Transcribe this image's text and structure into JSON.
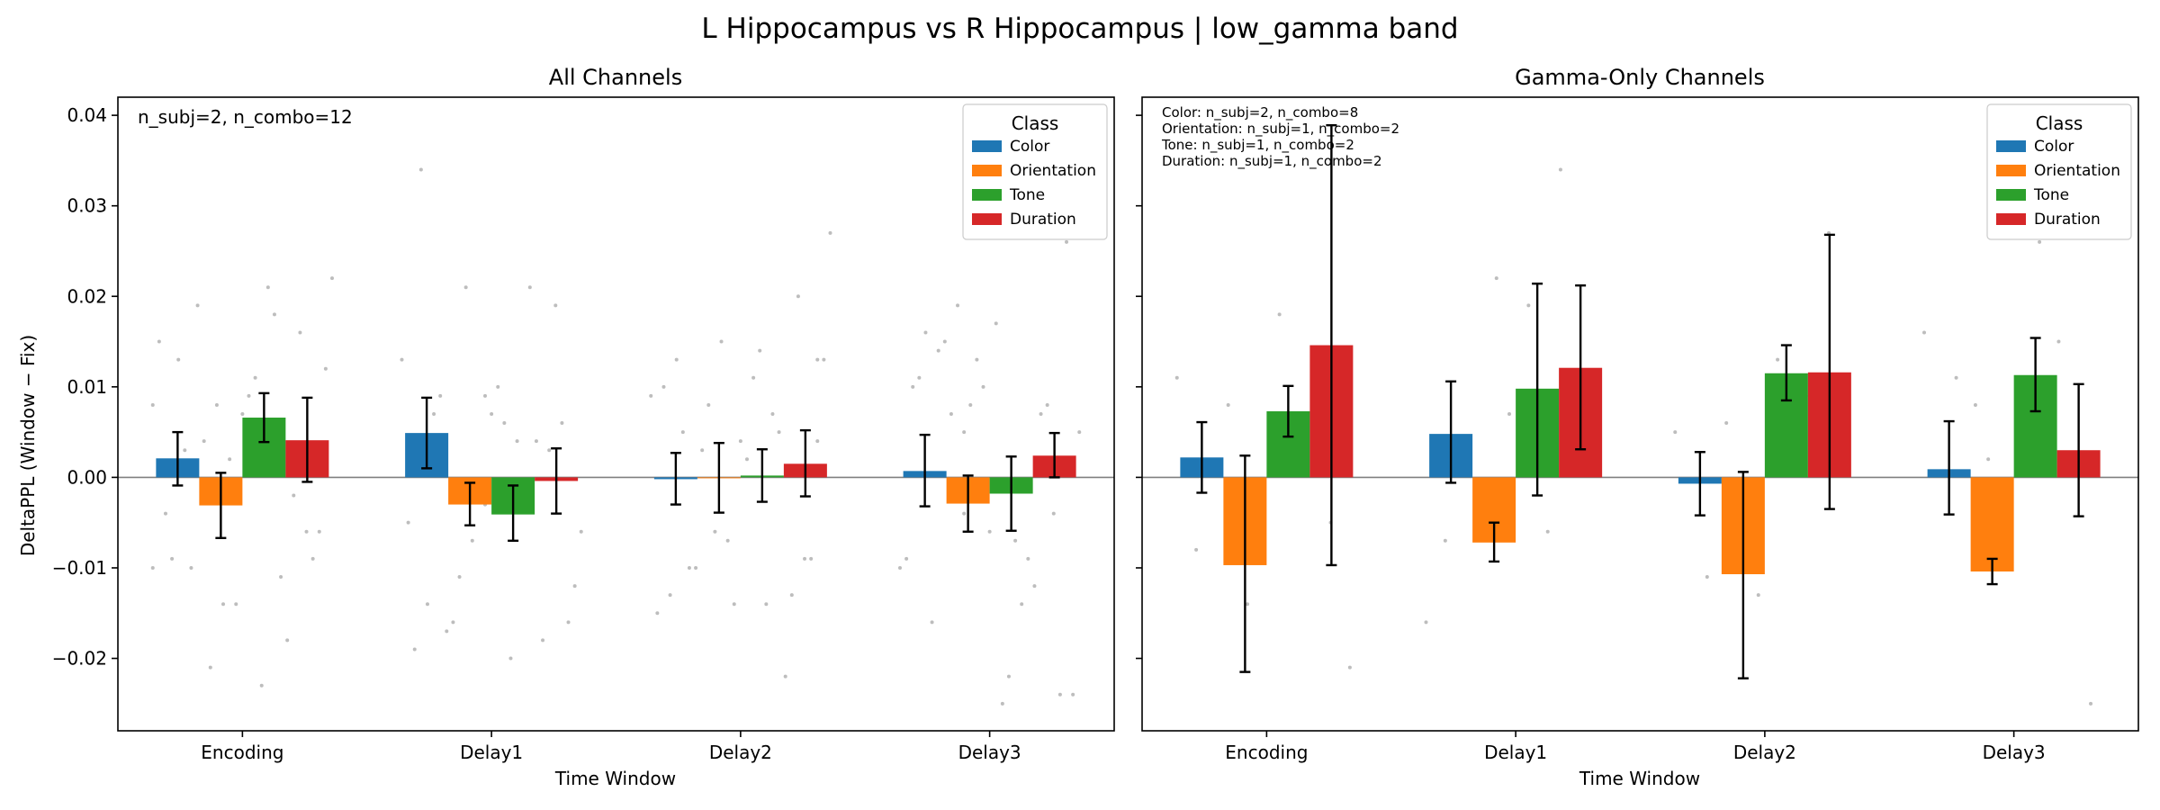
{
  "figure_title": "L Hippocampus vs R Hippocampus  |  low_gamma band",
  "colors": {
    "Color": "#1f77b4",
    "Orientation": "#ff7f0e",
    "Tone": "#2ca02c",
    "Duration": "#d62728",
    "scatter": "#bdbdbd",
    "zero_line": "#808080"
  },
  "chart_data": [
    {
      "type": "bar",
      "title": "All Channels",
      "xlabel": "Time Window",
      "ylabel": "DeltaPPL (Window − Fix)",
      "ylim": [
        -0.028,
        0.042
      ],
      "yticks": [
        -0.02,
        -0.01,
        0.0,
        0.01,
        0.02,
        0.03,
        0.04
      ],
      "ytick_labels": [
        "−0.02",
        "−0.01",
        "0.00",
        "0.01",
        "0.02",
        "0.03",
        "0.04"
      ],
      "categories": [
        "Encoding",
        "Delay1",
        "Delay2",
        "Delay3"
      ],
      "annotation": [
        "n_subj=2, n_combo=12"
      ],
      "legend": {
        "title": "Class",
        "position": "top-right"
      },
      "series": [
        {
          "name": "Color",
          "values": [
            0.0021,
            0.0049,
            -0.0002,
            0.0007
          ],
          "err_low": [
            -0.0009,
            0.001,
            -0.003,
            -0.0032
          ],
          "err_high": [
            0.005,
            0.0088,
            0.0027,
            0.0047
          ]
        },
        {
          "name": "Orientation",
          "values": [
            -0.0031,
            -0.003,
            -0.0001,
            -0.0029
          ],
          "err_low": [
            -0.0067,
            -0.0053,
            -0.0039,
            -0.006
          ],
          "err_high": [
            0.0005,
            -0.0006,
            0.0038,
            0.0002
          ]
        },
        {
          "name": "Tone",
          "values": [
            0.0066,
            -0.0041,
            0.0002,
            -0.0018
          ],
          "err_low": [
            0.0039,
            -0.007,
            -0.0027,
            -0.0059
          ],
          "err_high": [
            0.0093,
            -0.0009,
            0.0031,
            0.0023
          ]
        },
        {
          "name": "Duration",
          "values": [
            0.0041,
            -0.0004,
            0.0015,
            0.0024
          ],
          "err_low": [
            -0.0005,
            -0.004,
            -0.0021,
            0.0
          ],
          "err_high": [
            0.0088,
            0.0032,
            0.0052,
            0.0049
          ]
        }
      ],
      "scatter_points": [
        [
          0.008,
          0.004,
          0.011,
          -0.006,
          -0.009,
          -0.014,
          0.018,
          0.012,
          -0.01,
          0.007,
          -0.002,
          0.015,
          -0.021,
          -0.023,
          -0.009,
          0.013,
          0.002,
          -0.011,
          0.022,
          0.019,
          0.009,
          0.016,
          -0.004,
          0.008,
          0.021,
          -0.006,
          0.003,
          -0.014,
          -0.018,
          -0.01
        ],
        [
          0.009,
          0.004,
          0.013,
          -0.016,
          0.006,
          0.019,
          0.034,
          -0.007,
          -0.003,
          -0.012,
          0.009,
          0.007,
          -0.018,
          -0.005,
          -0.011,
          -0.02,
          0.006,
          -0.014,
          -0.002,
          0.021,
          -0.006,
          -0.017,
          0.01,
          0.003,
          -0.019,
          0.021,
          0.004,
          -0.016,
          0.007,
          -0.003
        ],
        [
          0.013,
          0.005,
          -0.014,
          -0.022,
          0.009,
          0.003,
          0.011,
          -0.009,
          -0.013,
          0.015,
          0.007,
          0.013,
          -0.01,
          0.004,
          -0.013,
          -0.015,
          0.008,
          0.014,
          -0.009,
          0.013,
          -0.007,
          0.005,
          0.027,
          -0.01,
          0.002,
          0.02,
          0.01,
          -0.006,
          -0.014,
          0.004
        ],
        [
          0.005,
          -0.007,
          0.026,
          -0.016,
          0.01,
          -0.012,
          -0.01,
          0.007,
          -0.025,
          -0.004,
          0.011,
          0.008,
          -0.014,
          -0.024,
          0.014,
          -0.006,
          0.007,
          -0.009,
          0.019,
          -0.022,
          -0.024,
          0.016,
          0.013,
          -0.009,
          0.005,
          0.015,
          0.017,
          0.008,
          0.01,
          -0.004
        ]
      ]
    },
    {
      "type": "bar",
      "title": "Gamma-Only Channels",
      "xlabel": "Time Window",
      "ylabel": "",
      "ylim": [
        -0.028,
        0.042
      ],
      "categories": [
        "Encoding",
        "Delay1",
        "Delay2",
        "Delay3"
      ],
      "annotation": [
        "Color: n_subj=2, n_combo=8",
        "Orientation: n_subj=1, n_combo=2",
        "Tone: n_subj=1, n_combo=2",
        "Duration: n_subj=1, n_combo=2"
      ],
      "legend": {
        "title": "Class",
        "position": "top-right"
      },
      "series": [
        {
          "name": "Color",
          "values": [
            0.0022,
            0.0048,
            -0.0007,
            0.0009
          ],
          "err_low": [
            -0.0017,
            -0.0006,
            -0.0042,
            -0.0041
          ],
          "err_high": [
            0.0061,
            0.0106,
            0.0028,
            0.0062
          ]
        },
        {
          "name": "Orientation",
          "values": [
            -0.0097,
            -0.0072,
            -0.0107,
            -0.0104
          ],
          "err_low": [
            -0.0215,
            -0.0093,
            -0.0222,
            -0.0118
          ],
          "err_high": [
            0.0024,
            -0.005,
            0.0006,
            -0.009
          ]
        },
        {
          "name": "Tone",
          "values": [
            0.0073,
            0.0098,
            0.0115,
            0.0113
          ],
          "err_low": [
            0.0045,
            -0.002,
            0.0085,
            0.0073
          ],
          "err_high": [
            0.0101,
            0.0214,
            0.0146,
            0.0154
          ]
        },
        {
          "name": "Duration",
          "values": [
            0.0146,
            0.0121,
            0.0116,
            0.003
          ],
          "err_low": [
            -0.0097,
            0.0031,
            -0.0035,
            -0.0043
          ],
          "err_high": [
            0.0389,
            0.0212,
            0.0268,
            0.0103
          ]
        }
      ],
      "scatter_points": [
        [
          0.011,
          0.008,
          0.018,
          -0.005,
          -0.008,
          -0.014,
          0.002,
          -0.021
        ],
        [
          0.007,
          0.034,
          -0.016,
          -0.005,
          0.019,
          0.01,
          -0.007,
          0.022,
          -0.006
        ],
        [
          0.01,
          -0.011,
          -0.013,
          0.009,
          0.005,
          0.006,
          0.013,
          0.027
        ],
        [
          0.002,
          0.026,
          -0.025,
          0.011,
          -0.004,
          0.015,
          0.016,
          0.008
        ]
      ]
    }
  ]
}
